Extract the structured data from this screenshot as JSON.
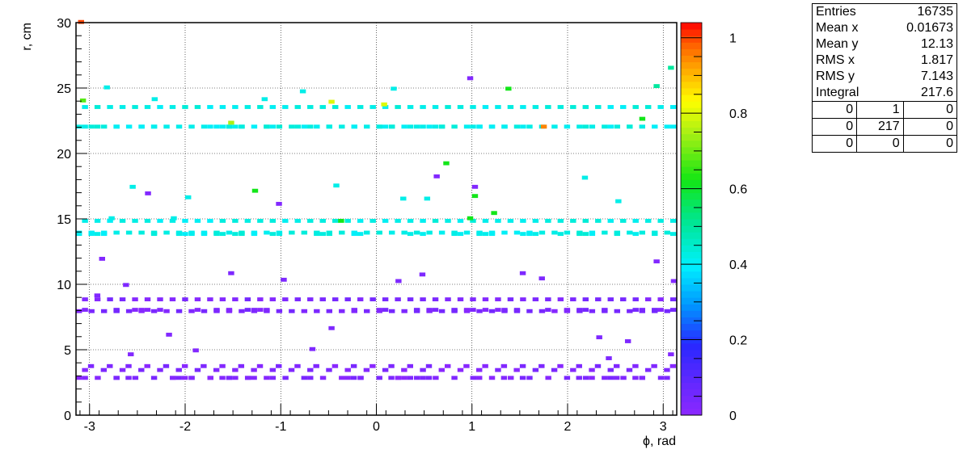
{
  "stats": {
    "rows": [
      {
        "label": "Entries",
        "value": "16735"
      },
      {
        "label": "Mean x",
        "value": "0.01673"
      },
      {
        "label": "Mean y",
        "value": "12.13"
      },
      {
        "label": "RMS x",
        "value": "1.817"
      },
      {
        "label": "RMS y",
        "value": "7.143"
      },
      {
        "label": "Integral",
        "value": "217.6"
      }
    ],
    "grid": [
      [
        "0",
        "1",
        "0"
      ],
      [
        "0",
        "217",
        "0"
      ],
      [
        "0",
        "0",
        "0"
      ]
    ]
  },
  "chart_data": {
    "type": "heatmap",
    "xlabel": "ϕ, rad",
    "ylabel": "r, cm",
    "xlim": [
      -3.1416,
      3.1416
    ],
    "ylim": [
      0,
      30
    ],
    "x_ticks": [
      "-3",
      "-2",
      "-1",
      "0",
      "1",
      "2",
      "3"
    ],
    "y_ticks": [
      "0",
      "5",
      "10",
      "15",
      "20",
      "25",
      "30"
    ],
    "grid": true,
    "palette": "rainbow",
    "z_range": [
      0,
      1.04
    ],
    "z_ticks": [
      "0",
      "0.2",
      "0.4",
      "0.6",
      "0.8",
      "1"
    ],
    "bin_size": {
      "phi": 0.0628,
      "r": 0.3
    },
    "layers": [
      {
        "r_low": 2.7,
        "r_high": 3.6,
        "z": 0.02,
        "modules": 32
      },
      {
        "r_low": 7.9,
        "r_high": 8.6,
        "z": 0.03,
        "modules": 48
      },
      {
        "r_low": 13.7,
        "r_high": 14.6,
        "z": 0.42,
        "modules": 48
      },
      {
        "r_low": 21.9,
        "r_high": 23.3,
        "z": 0.42,
        "modules": 48
      }
    ],
    "scattered_cells": [
      {
        "phi": -3.12,
        "r": 29.9,
        "z": 1.0
      },
      {
        "phi": -3.1,
        "r": 23.9,
        "z": 0.68
      },
      {
        "phi": -2.95,
        "r": 9.0,
        "z": 0.02
      },
      {
        "phi": -2.9,
        "r": 11.8,
        "z": 0.02
      },
      {
        "phi": -2.85,
        "r": 24.9,
        "z": 0.42
      },
      {
        "phi": -2.8,
        "r": 14.9,
        "z": 0.42
      },
      {
        "phi": -2.65,
        "r": 9.8,
        "z": 0.03
      },
      {
        "phi": -2.6,
        "r": 4.5,
        "z": 0.02
      },
      {
        "phi": -2.58,
        "r": 17.3,
        "z": 0.42
      },
      {
        "phi": -2.42,
        "r": 16.8,
        "z": 0.02
      },
      {
        "phi": -2.35,
        "r": 24.0,
        "z": 0.42
      },
      {
        "phi": -2.2,
        "r": 6.0,
        "z": 0.02
      },
      {
        "phi": -2.15,
        "r": 14.9,
        "z": 0.42
      },
      {
        "phi": -2.0,
        "r": 16.5,
        "z": 0.42
      },
      {
        "phi": -1.92,
        "r": 4.8,
        "z": 0.02
      },
      {
        "phi": -1.55,
        "r": 22.2,
        "z": 0.75
      },
      {
        "phi": -1.55,
        "r": 10.7,
        "z": 0.03
      },
      {
        "phi": -1.3,
        "r": 17.0,
        "z": 0.62
      },
      {
        "phi": -1.2,
        "r": 24.0,
        "z": 0.42
      },
      {
        "phi": -1.05,
        "r": 16.0,
        "z": 0.02
      },
      {
        "phi": -1.0,
        "r": 10.2,
        "z": 0.03
      },
      {
        "phi": -0.8,
        "r": 24.6,
        "z": 0.42
      },
      {
        "phi": -0.7,
        "r": 4.9,
        "z": 0.03
      },
      {
        "phi": -0.5,
        "r": 6.5,
        "z": 0.03
      },
      {
        "phi": -0.5,
        "r": 23.8,
        "z": 0.8
      },
      {
        "phi": -0.45,
        "r": 17.4,
        "z": 0.42
      },
      {
        "phi": -0.4,
        "r": 14.7,
        "z": 0.62
      },
      {
        "phi": 0.05,
        "r": 23.6,
        "z": 0.8
      },
      {
        "phi": 0.15,
        "r": 24.8,
        "z": 0.42
      },
      {
        "phi": 0.2,
        "r": 10.1,
        "z": 0.03
      },
      {
        "phi": 0.25,
        "r": 16.4,
        "z": 0.42
      },
      {
        "phi": 0.45,
        "r": 10.6,
        "z": 0.03
      },
      {
        "phi": 0.5,
        "r": 16.4,
        "z": 0.42
      },
      {
        "phi": 0.6,
        "r": 18.1,
        "z": 0.02
      },
      {
        "phi": 0.7,
        "r": 19.1,
        "z": 0.62
      },
      {
        "phi": 0.95,
        "r": 14.9,
        "z": 0.62
      },
      {
        "phi": 0.95,
        "r": 25.6,
        "z": 0.02
      },
      {
        "phi": 1.0,
        "r": 17.3,
        "z": 0.02
      },
      {
        "phi": 1.0,
        "r": 16.6,
        "z": 0.62
      },
      {
        "phi": 1.2,
        "r": 15.3,
        "z": 0.62
      },
      {
        "phi": 1.35,
        "r": 24.8,
        "z": 0.62
      },
      {
        "phi": 1.5,
        "r": 10.7,
        "z": 0.03
      },
      {
        "phi": 1.72,
        "r": 21.9,
        "z": 0.95
      },
      {
        "phi": 1.7,
        "r": 10.3,
        "z": 0.03
      },
      {
        "phi": 2.15,
        "r": 18.0,
        "z": 0.42
      },
      {
        "phi": 2.3,
        "r": 5.8,
        "z": 0.03
      },
      {
        "phi": 2.4,
        "r": 4.2,
        "z": 0.03
      },
      {
        "phi": 2.5,
        "r": 16.2,
        "z": 0.42
      },
      {
        "phi": 2.6,
        "r": 5.5,
        "z": 0.03
      },
      {
        "phi": 2.75,
        "r": 22.5,
        "z": 0.62
      },
      {
        "phi": 2.9,
        "r": 25.0,
        "z": 0.5
      },
      {
        "phi": 2.9,
        "r": 11.6,
        "z": 0.02
      },
      {
        "phi": 3.05,
        "r": 26.4,
        "z": 0.5
      },
      {
        "phi": 3.08,
        "r": 10.1,
        "z": 0.02
      },
      {
        "phi": 3.05,
        "r": 4.5,
        "z": 0.02
      }
    ]
  }
}
